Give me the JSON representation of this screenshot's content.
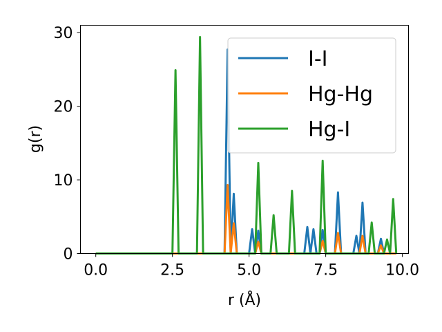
{
  "chart_data": {
    "type": "line",
    "title": "",
    "xlabel": "r (Å)",
    "ylabel": "g(r)",
    "xlim": [
      -0.5,
      10.2
    ],
    "ylim": [
      0,
      31
    ],
    "xticks": [
      0.0,
      2.5,
      5.0,
      7.5,
      10.0
    ],
    "xtick_labels": [
      "0.0",
      "2.5",
      "5.0",
      "7.5",
      "10.0"
    ],
    "yticks": [
      0,
      10,
      20,
      30
    ],
    "ytick_labels": [
      "0",
      "10",
      "20",
      "30"
    ],
    "grid": false,
    "legend_position": "top-right",
    "colors": {
      "I-I": "#1f77b4",
      "Hg-Hg": "#ff7f0e",
      "Hg-I": "#2ca02c"
    },
    "series": [
      {
        "name": "I-I",
        "x": [
          0.0,
          4.2,
          4.3,
          4.4,
          4.5,
          4.6,
          4.7,
          5.0,
          5.1,
          5.2,
          5.3,
          5.4,
          6.8,
          6.9,
          7.0,
          7.1,
          7.2,
          7.3,
          7.4,
          7.5,
          7.8,
          7.9,
          8.0,
          8.4,
          8.5,
          8.6,
          8.7,
          8.8,
          9.2,
          9.3,
          9.4,
          9.8
        ],
        "y": [
          0,
          0,
          27.7,
          0,
          8.1,
          0,
          0,
          0,
          3.3,
          0,
          3.1,
          0,
          0,
          3.6,
          0,
          3.3,
          0,
          0,
          3.2,
          0,
          0,
          8.3,
          0,
          0,
          2.4,
          0,
          6.9,
          0,
          0,
          2.0,
          0,
          0
        ]
      },
      {
        "name": "Hg-Hg",
        "x": [
          0.0,
          4.2,
          4.3,
          4.4,
          4.5,
          4.6,
          5.2,
          5.3,
          5.4,
          7.3,
          7.4,
          7.5,
          7.8,
          7.9,
          8.0,
          8.6,
          8.7,
          8.8,
          9.2,
          9.3,
          9.4,
          9.8
        ],
        "y": [
          0,
          0,
          9.3,
          0,
          4.1,
          0,
          0,
          1.6,
          0,
          0,
          1.7,
          0,
          0,
          2.8,
          0,
          0,
          2.4,
          0,
          0,
          1.1,
          0,
          0
        ]
      },
      {
        "name": "Hg-I",
        "x": [
          0.0,
          2.5,
          2.6,
          2.7,
          3.3,
          3.4,
          3.5,
          5.2,
          5.3,
          5.4,
          5.7,
          5.8,
          5.9,
          6.3,
          6.4,
          6.5,
          7.3,
          7.4,
          7.5,
          8.0,
          8.1,
          8.9,
          9.0,
          9.1,
          9.2,
          9.4,
          9.5,
          9.6,
          9.7,
          9.8
        ],
        "y": [
          0,
          0,
          24.9,
          0,
          0,
          29.4,
          0,
          0,
          12.3,
          0,
          0,
          5.2,
          0,
          0,
          8.5,
          0,
          0,
          12.6,
          0,
          0,
          0,
          0,
          4.2,
          0,
          0,
          0,
          1.9,
          0,
          7.4,
          0
        ]
      }
    ]
  }
}
